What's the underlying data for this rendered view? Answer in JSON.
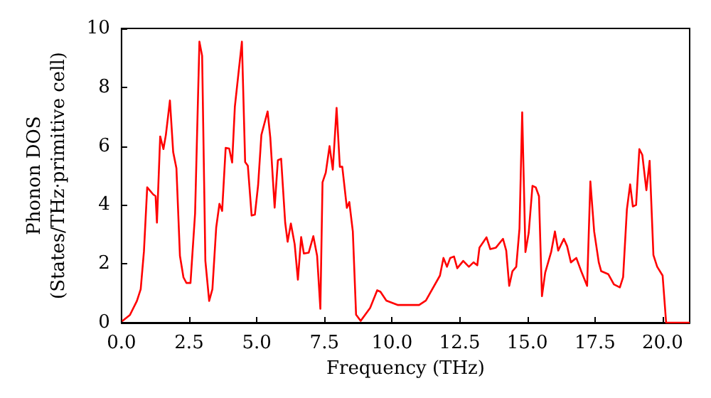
{
  "chart_data": {
    "type": "line",
    "xlabel": "Frequency (THz)",
    "ylabel": "Phonon DOS\n(States/THz·primitive cell)",
    "xlim": [
      0,
      21
    ],
    "ylim": [
      0,
      10
    ],
    "xticks": [
      {
        "value": 0,
        "label": "0.0"
      },
      2.5,
      {
        "value": 5,
        "label": "5.0"
      },
      7.5,
      {
        "value": 10,
        "label": "10.0"
      },
      12.5,
      {
        "value": 15,
        "label": "15.0"
      },
      17.5,
      {
        "value": 20,
        "label": "20.0"
      }
    ],
    "yticks": [
      0,
      2,
      4,
      6,
      8,
      10
    ],
    "grid": false,
    "marker": "none",
    "line_style": "solid",
    "series": [
      {
        "color": "#ff0000",
        "x": [
          0.02,
          0.31,
          0.57,
          0.71,
          0.83,
          0.95,
          1.17,
          1.26,
          1.31,
          1.43,
          1.55,
          1.64,
          1.79,
          1.91,
          2.03,
          2.16,
          2.29,
          2.4,
          2.55,
          2.72,
          2.88,
          2.98,
          3.1,
          3.24,
          3.36,
          3.5,
          3.62,
          3.72,
          3.85,
          3.98,
          4.09,
          4.19,
          4.45,
          4.57,
          4.67,
          4.81,
          4.93,
          5.05,
          5.17,
          5.4,
          5.5,
          5.66,
          5.78,
          5.9,
          6.05,
          6.14,
          6.26,
          6.4,
          6.52,
          6.64,
          6.74,
          6.92,
          7.09,
          7.23,
          7.35,
          7.43,
          7.55,
          7.69,
          7.81,
          7.95,
          8.07,
          8.16,
          8.33,
          8.42,
          8.55,
          8.67,
          8.84,
          9.19,
          9.45,
          9.57,
          9.79,
          10.22,
          11.0,
          11.25,
          11.77,
          11.9,
          12.03,
          12.15,
          12.29,
          12.41,
          12.63,
          12.84,
          13.01,
          13.15,
          13.23,
          13.49,
          13.63,
          13.84,
          14.1,
          14.22,
          14.33,
          14.45,
          14.59,
          14.71,
          14.81,
          14.93,
          15.05,
          15.19,
          15.31,
          15.43,
          15.54,
          15.66,
          15.88,
          16.02,
          16.14,
          16.35,
          16.47,
          16.61,
          16.81,
          16.99,
          17.21,
          17.33,
          17.47,
          17.64,
          17.73,
          17.99,
          18.2,
          18.42,
          18.54,
          18.68,
          18.8,
          18.9,
          19.02,
          19.14,
          19.25,
          19.4,
          19.52,
          19.66,
          19.8,
          20.0,
          20.13,
          21.0
        ],
        "values": [
          0.05,
          0.26,
          0.74,
          1.14,
          2.43,
          4.6,
          4.36,
          4.3,
          3.4,
          6.33,
          5.9,
          6.38,
          7.55,
          5.8,
          5.25,
          2.27,
          1.54,
          1.35,
          1.35,
          3.72,
          9.55,
          9.07,
          2.1,
          0.74,
          1.14,
          3.23,
          4.04,
          3.8,
          5.94,
          5.92,
          5.44,
          7.34,
          9.55,
          5.46,
          5.33,
          3.64,
          3.67,
          4.68,
          6.38,
          7.18,
          6.29,
          3.91,
          5.52,
          5.57,
          3.4,
          2.75,
          3.37,
          2.67,
          1.46,
          2.91,
          2.35,
          2.38,
          2.94,
          2.27,
          0.47,
          4.77,
          5.1,
          6.0,
          5.2,
          7.3,
          5.3,
          5.3,
          3.9,
          4.1,
          3.1,
          0.27,
          0.06,
          0.5,
          1.1,
          1.05,
          0.75,
          0.6,
          0.6,
          0.75,
          1.6,
          2.2,
          1.9,
          2.2,
          2.25,
          1.85,
          2.1,
          1.9,
          2.05,
          1.95,
          2.55,
          2.9,
          2.5,
          2.55,
          2.85,
          2.45,
          1.25,
          1.75,
          1.9,
          3.2,
          7.15,
          2.4,
          3.05,
          4.65,
          4.6,
          4.3,
          0.9,
          1.7,
          2.4,
          3.1,
          2.45,
          2.85,
          2.6,
          2.05,
          2.2,
          1.75,
          1.25,
          4.8,
          3.1,
          2.05,
          1.75,
          1.65,
          1.3,
          1.2,
          1.55,
          3.85,
          4.7,
          3.95,
          4.0,
          5.9,
          5.7,
          4.5,
          5.5,
          2.3,
          1.9,
          1.6,
          0.0,
          0.0
        ]
      }
    ]
  }
}
